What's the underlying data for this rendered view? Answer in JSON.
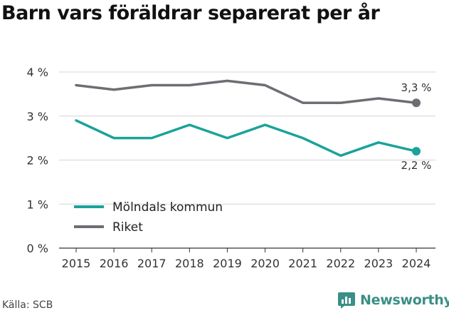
{
  "title": "Barn vars föräldrar separerat per år",
  "source": "Källa: SCB",
  "brand": "Newsworthy",
  "chart_data": {
    "type": "line",
    "title": "Barn vars föräldrar separerat per år",
    "x": [
      "2015",
      "2016",
      "2017",
      "2018",
      "2019",
      "2020",
      "2021",
      "2022",
      "2023",
      "2024"
    ],
    "ylim": [
      0,
      4
    ],
    "yticks": [
      {
        "value": 0,
        "label": "0 %"
      },
      {
        "value": 1,
        "label": "1 %"
      },
      {
        "value": 2,
        "label": "2 %"
      },
      {
        "value": 3,
        "label": "3 %"
      },
      {
        "value": 4,
        "label": "4 %"
      }
    ],
    "grid": "horizontal",
    "legend_placement": "bottom-left",
    "series": [
      {
        "name": "Mölndals kommun",
        "color": "#1aa39a",
        "values": [
          2.9,
          2.5,
          2.5,
          2.8,
          2.5,
          2.8,
          2.5,
          2.1,
          2.4,
          2.2
        ],
        "end_label": "2,2 %"
      },
      {
        "name": "Riket",
        "color": "#6e6d73",
        "values": [
          3.7,
          3.6,
          3.7,
          3.7,
          3.8,
          3.7,
          3.3,
          3.3,
          3.4,
          3.3
        ],
        "end_label": "3,3 %"
      }
    ]
  }
}
